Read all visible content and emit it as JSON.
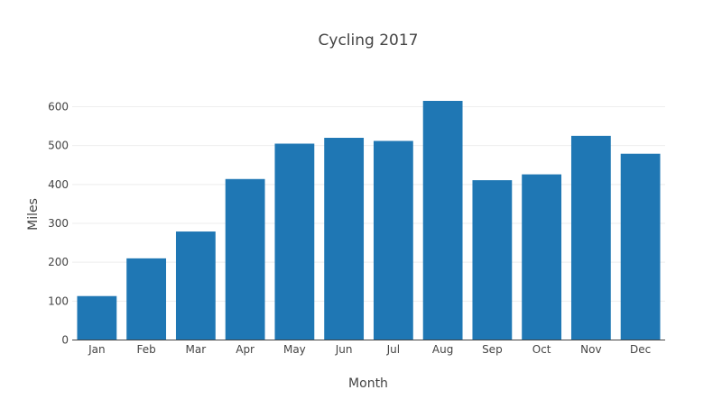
{
  "chart_data": {
    "type": "bar",
    "title": "Cycling 2017",
    "xlabel": "Month",
    "ylabel": "Miles",
    "categories": [
      "Jan",
      "Feb",
      "Mar",
      "Apr",
      "May",
      "Jun",
      "Jul",
      "Aug",
      "Sep",
      "Oct",
      "Nov",
      "Dec"
    ],
    "values": [
      113,
      210,
      279,
      414,
      505,
      520,
      512,
      615,
      411,
      426,
      525,
      479
    ],
    "ylim": [
      0,
      650
    ],
    "yticks": [
      0,
      100,
      200,
      300,
      400,
      500,
      600
    ],
    "grid": "horizontal",
    "legend": "none",
    "bar_color": "#1f77b4"
  }
}
